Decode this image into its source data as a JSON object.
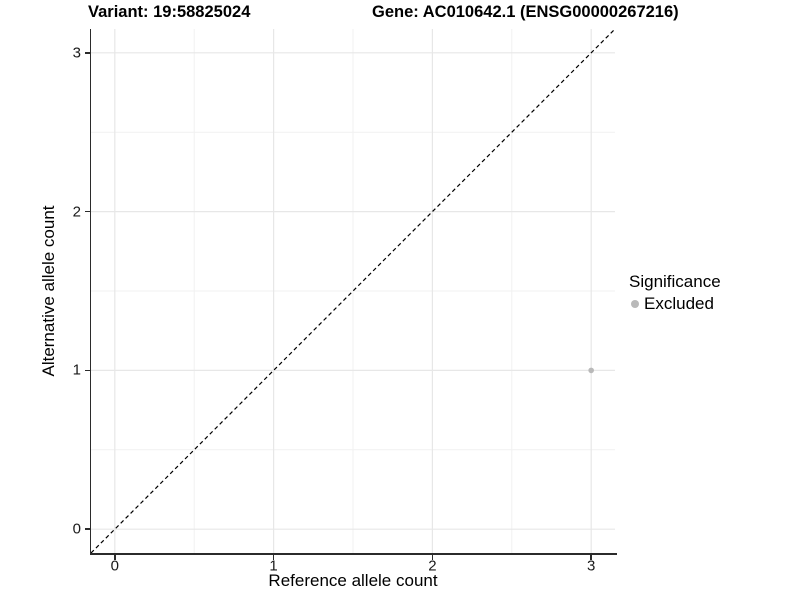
{
  "figure": {
    "title_left": "Variant: 19:58825024",
    "title_right": "Gene: AC010642.1 (ENSG00000267216)"
  },
  "chart_data": {
    "type": "scatter",
    "title_left": "Variant: 19:58825024",
    "title_right": "Gene: AC010642.1 (ENSG00000267216)",
    "xlabel": "Reference allele count",
    "ylabel": "Alternative allele count",
    "xlim": [
      -0.15,
      3.15
    ],
    "ylim": [
      -0.15,
      3.15
    ],
    "x_ticks": [
      0,
      1,
      2,
      3
    ],
    "y_ticks": [
      0,
      1,
      2,
      3
    ],
    "minor_ticks": [
      0.5,
      1.5,
      2.5
    ],
    "grid": true,
    "reference_line": {
      "type": "identity_y_equals_x",
      "style": "dashed",
      "color": "#000000"
    },
    "series": [
      {
        "name": "Excluded",
        "color": "#b9b9b9",
        "points": [
          {
            "x": 3,
            "y": 1
          }
        ]
      }
    ],
    "legend": {
      "title": "Significance",
      "position": "right",
      "items": [
        {
          "label": "Excluded",
          "color": "#b9b9b9"
        }
      ]
    },
    "colors": {
      "background": "#ffffff",
      "grid_major": "#e7e7e7",
      "grid_minor": "#f1f1f1",
      "axis_line": "#2b2b2b",
      "tick_label": "#1a1a1a",
      "point": "#b9b9b9"
    }
  }
}
